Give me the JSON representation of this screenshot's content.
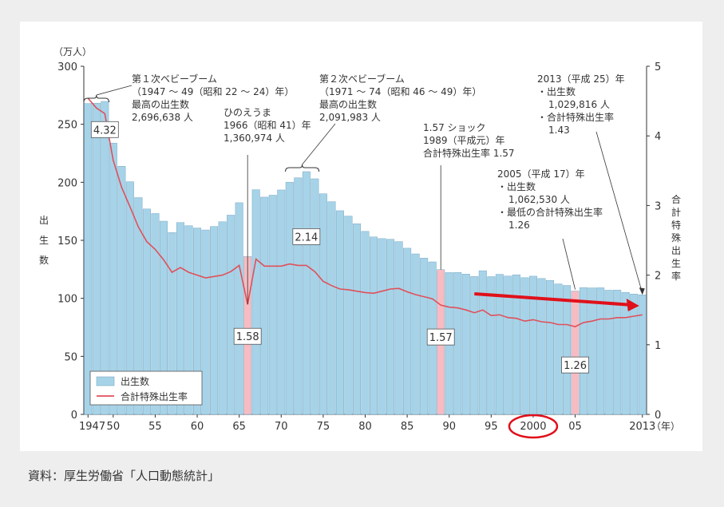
{
  "source": "資料：厚生労働省「人口動態統計」",
  "chart_data": {
    "type": "bar+line",
    "left_unit": "（万人）",
    "left_axis_label": "出生数",
    "right_axis_label": "合計特殊出生率",
    "x_unit": "（年）",
    "ylim_left": [
      0,
      300
    ],
    "ylim_right": [
      0,
      5
    ],
    "left_ticks": [
      "0",
      "50",
      "100",
      "150",
      "200",
      "250",
      "300"
    ],
    "right_ticks": [
      "0",
      "1",
      "2",
      "3",
      "4",
      "5"
    ],
    "x_ticks": [
      {
        "year": 1947,
        "label": "1947"
      },
      {
        "year": 1950,
        "label": "50"
      },
      {
        "year": 1955,
        "label": "55"
      },
      {
        "year": 1960,
        "label": "60"
      },
      {
        "year": 1965,
        "label": "65"
      },
      {
        "year": 1970,
        "label": "70"
      },
      {
        "year": 1975,
        "label": "75"
      },
      {
        "year": 1980,
        "label": "80"
      },
      {
        "year": 1985,
        "label": "85"
      },
      {
        "year": 1990,
        "label": "90"
      },
      {
        "year": 1995,
        "label": "95"
      },
      {
        "year": 2000,
        "label": "2000"
      },
      {
        "year": 2005,
        "label": "05"
      },
      {
        "year": 2013,
        "label": "2013"
      }
    ],
    "years": [
      1947,
      1948,
      1949,
      1950,
      1951,
      1952,
      1953,
      1954,
      1955,
      1956,
      1957,
      1958,
      1959,
      1960,
      1961,
      1962,
      1963,
      1964,
      1965,
      1966,
      1967,
      1968,
      1969,
      1970,
      1971,
      1972,
      1973,
      1974,
      1975,
      1976,
      1977,
      1978,
      1979,
      1980,
      1981,
      1982,
      1983,
      1984,
      1985,
      1986,
      1987,
      1988,
      1989,
      1990,
      1991,
      1992,
      1993,
      1994,
      1995,
      1996,
      1997,
      1998,
      1999,
      2000,
      2001,
      2002,
      2003,
      2004,
      2005,
      2006,
      2007,
      2008,
      2009,
      2010,
      2011,
      2012,
      2013
    ],
    "series": [
      {
        "name": "出生数",
        "type": "bar",
        "color": "#a7d3e8",
        "highlight_color": "#f6bcc2",
        "highlight_years": [
          1966,
          1989,
          2005
        ],
        "values": [
          267.9,
          268.2,
          269.7,
          233.8,
          213.8,
          200.5,
          186.8,
          177.0,
          173.1,
          166.5,
          156.7,
          165.3,
          162.6,
          160.6,
          158.9,
          161.9,
          166.0,
          171.7,
          182.4,
          136.1,
          193.6,
          187.2,
          188.9,
          193.4,
          200.1,
          203.9,
          209.2,
          203.0,
          190.1,
          183.3,
          175.5,
          170.9,
          164.3,
          157.7,
          152.9,
          151.5,
          150.9,
          148.9,
          143.2,
          138.3,
          134.7,
          131.4,
          124.7,
          122.2,
          122.3,
          120.9,
          118.8,
          123.8,
          118.7,
          120.7,
          119.2,
          120.3,
          117.8,
          119.1,
          117.1,
          115.4,
          112.4,
          111.1,
          106.3,
          109.3,
          109.0,
          109.1,
          107.0,
          107.1,
          105.1,
          103.7,
          103.0
        ]
      },
      {
        "name": "合計特殊出生率",
        "type": "line",
        "axis": "right",
        "color": "#e0505a",
        "values": [
          4.54,
          4.4,
          4.32,
          3.65,
          3.26,
          2.98,
          2.69,
          2.48,
          2.37,
          2.22,
          2.04,
          2.11,
          2.04,
          2.0,
          1.96,
          1.98,
          2.0,
          2.05,
          2.14,
          1.58,
          2.23,
          2.13,
          2.13,
          2.13,
          2.16,
          2.14,
          2.14,
          2.05,
          1.91,
          1.85,
          1.8,
          1.79,
          1.77,
          1.75,
          1.74,
          1.77,
          1.8,
          1.81,
          1.76,
          1.72,
          1.69,
          1.66,
          1.57,
          1.54,
          1.53,
          1.5,
          1.46,
          1.5,
          1.42,
          1.43,
          1.39,
          1.38,
          1.34,
          1.36,
          1.33,
          1.32,
          1.29,
          1.29,
          1.26,
          1.32,
          1.34,
          1.37,
          1.37,
          1.39,
          1.39,
          1.41,
          1.43
        ]
      }
    ],
    "value_labels": [
      {
        "year": 1949,
        "text": "4.32"
      },
      {
        "year": 1966,
        "text": "1.58"
      },
      {
        "year": 1973,
        "text": "2.14"
      },
      {
        "year": 1989,
        "text": "1.57"
      },
      {
        "year": 2005,
        "text": "1.26"
      }
    ],
    "annotations": [
      {
        "lines": [
          "第１次ベビーブーム",
          "（1947 ～ 49（昭和 22 ～ 24）年）",
          "最高の出生数",
          "2,696,638 人"
        ]
      },
      {
        "lines": [
          "ひのえうま",
          "1966（昭和 41）年",
          "1,360,974 人"
        ]
      },
      {
        "lines": [
          "第２次ベビーブーム",
          "（1971 ～ 74（昭和 46 ～ 49）年）",
          "最高の出生数",
          "2,091,983 人"
        ]
      },
      {
        "lines": [
          "1.57 ショック",
          "1989（平成元）年",
          "合計特殊出生率 1.57"
        ]
      },
      {
        "lines": [
          "2005（平成 17）年",
          "・出生数",
          "1,062,530 人",
          "・最低の合計特殊出生率",
          "1.26"
        ]
      },
      {
        "lines": [
          "2013（平成 25）年",
          "・出生数",
          "1,029,816 人",
          "・合計特殊出生率",
          "1.43"
        ]
      }
    ],
    "legend": {
      "position": "bottom-left",
      "items": [
        "出生数",
        "合計特殊出生率"
      ]
    },
    "emphasis": {
      "circled_tick_year": 2000,
      "circle_color": "#e0101a",
      "arrow_color": "#e0101a",
      "arrow_from_year": 1993,
      "arrow_to_year": 2013
    }
  }
}
